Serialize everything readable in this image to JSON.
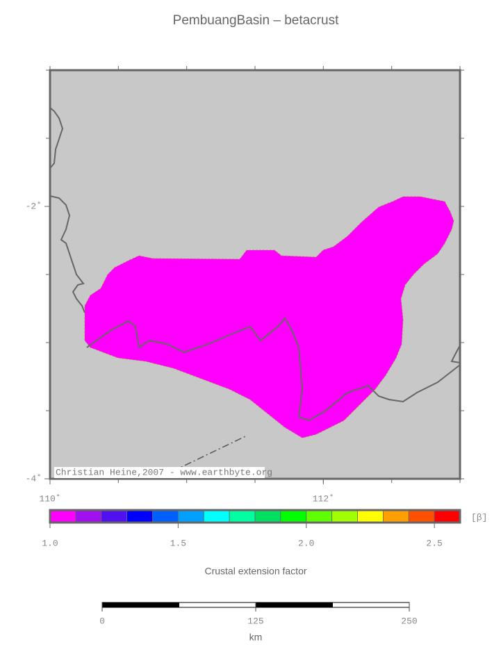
{
  "title": "PembuangBasin – betacrust",
  "map": {
    "xlim": [
      110,
      113
    ],
    "ylim": [
      -4,
      -1
    ],
    "xticks": [
      {
        "value": 110,
        "label": "110˚"
      },
      {
        "value": 112,
        "label": "112˚"
      }
    ],
    "yticks": [
      {
        "value": -2,
        "label": "-2˚"
      },
      {
        "value": -4,
        "label": "-4˚"
      }
    ],
    "credit": "Christian Heine,2007 - www.earthbyte.org"
  },
  "colorbar": {
    "lim": [
      1,
      2.6
    ],
    "unit": "[β]",
    "label": "Crustal extension factor",
    "colors": [
      "#ff00ff",
      "#a010f0",
      "#5010f0",
      "#0000ff",
      "#0060ff",
      "#00a0ff",
      "#00ffff",
      "#00ffa0",
      "#00e060",
      "#00ff00",
      "#60ff00",
      "#a0ff00",
      "#ffff00",
      "#ffa000",
      "#ff5000",
      "#ff0000"
    ],
    "ticks": [
      {
        "value": 1,
        "label": "1.0"
      },
      {
        "value": 1.5,
        "label": "1.5"
      },
      {
        "value": 2,
        "label": "2.0"
      },
      {
        "value": 2.5,
        "label": "2.5"
      }
    ]
  },
  "scalebar": {
    "ticks": [
      0,
      125,
      250
    ],
    "unit": "km"
  }
}
